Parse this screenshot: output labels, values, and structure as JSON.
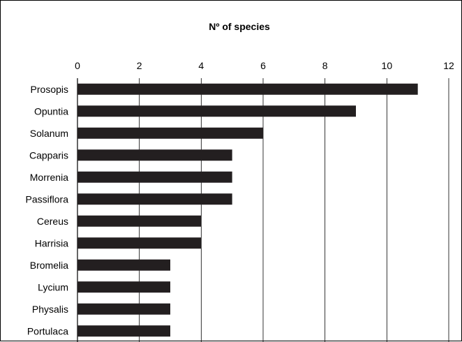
{
  "chart_data": {
    "type": "bar",
    "orientation": "horizontal",
    "title": "Nº of species",
    "xlabel": "",
    "ylabel": "",
    "categories": [
      "Prosopis",
      "Opuntia",
      "Solanum",
      "Capparis",
      "Morrenia",
      "Passiflora",
      "Cereus",
      "Harrisia",
      "Bromelia",
      "Lycium",
      "Physalis",
      "Portulaca"
    ],
    "values": [
      11,
      9,
      6,
      5,
      5,
      5,
      4,
      4,
      3,
      3,
      3,
      3
    ],
    "xlim": [
      0,
      12
    ],
    "ticks": [
      0,
      2,
      4,
      6,
      8,
      10,
      12
    ],
    "tick_labels": [
      "0",
      "2",
      "4",
      "6",
      "8",
      "10",
      "12"
    ],
    "axis_position": "top",
    "grid": true,
    "bar_color": "#231f20"
  }
}
